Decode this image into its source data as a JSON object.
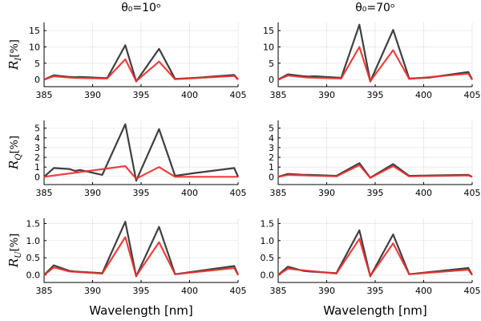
{
  "figure": {
    "column_titles": [
      "θ₀=10ᵒ",
      "θ₀=70ᵒ"
    ],
    "row_labels": [
      {
        "main": "R",
        "sub": "I",
        "unit": "[%]"
      },
      {
        "main": "R",
        "sub": "Q",
        "unit": "[%]"
      },
      {
        "main": "R",
        "sub": "U",
        "unit": "[%]"
      }
    ],
    "xlabel": "Wavelength [nm]",
    "series_colors": {
      "dark": "#3f3f3f",
      "red": "#e8302e"
    }
  },
  "chart_data": [
    {
      "type": "line",
      "panel": "RI-theta10",
      "xlim": [
        385,
        405
      ],
      "xticks": [
        385,
        390,
        395,
        400,
        405
      ],
      "ylim": [
        -2.2,
        17.5
      ],
      "yticks": [
        0,
        5,
        10,
        15
      ],
      "grid": true,
      "series": [
        {
          "color": "dark",
          "x": [
            385.0,
            386.0,
            387.6,
            388.2,
            388.7,
            391.5,
            393.37,
            394.5,
            396.85,
            398.5,
            400.6,
            404.6,
            405.0
          ],
          "y": [
            0.0,
            1.3,
            0.8,
            0.7,
            0.8,
            0.4,
            10.5,
            -0.6,
            9.4,
            0.2,
            0.5,
            1.4,
            0.0
          ]
        },
        {
          "color": "red",
          "x": [
            385.0,
            386.0,
            387.6,
            388.2,
            391.5,
            393.37,
            394.5,
            396.85,
            398.5,
            404.6,
            405.0
          ],
          "y": [
            0.0,
            1.0,
            0.6,
            0.5,
            0.3,
            6.2,
            -0.5,
            5.5,
            0.1,
            1.1,
            0.0
          ]
        }
      ]
    },
    {
      "type": "line",
      "panel": "RI-theta70",
      "xlim": [
        385,
        405
      ],
      "xticks": [
        385,
        390,
        395,
        400,
        405
      ],
      "ylim": [
        -2.2,
        17.5
      ],
      "yticks": [
        0,
        5,
        10,
        15
      ],
      "grid": true,
      "series": [
        {
          "color": "dark",
          "x": [
            385.0,
            386.0,
            387.6,
            388.2,
            388.7,
            391.5,
            393.37,
            394.5,
            396.85,
            398.5,
            400.6,
            404.6,
            405.0
          ],
          "y": [
            0.0,
            1.6,
            1.0,
            0.9,
            1.0,
            0.5,
            16.8,
            -0.6,
            15.2,
            0.3,
            0.6,
            2.3,
            0.0
          ]
        },
        {
          "color": "red",
          "x": [
            385.0,
            386.0,
            387.6,
            388.2,
            391.5,
            393.37,
            394.5,
            396.85,
            398.5,
            404.6,
            405.0
          ],
          "y": [
            0.0,
            1.2,
            0.7,
            0.6,
            0.3,
            10.0,
            -0.5,
            9.0,
            0.2,
            1.8,
            0.0
          ]
        }
      ]
    },
    {
      "type": "line",
      "panel": "RQ-theta10",
      "xlim": [
        385,
        405
      ],
      "xticks": [
        385,
        390,
        395,
        400,
        405
      ],
      "ylim": [
        -0.8,
        5.8
      ],
      "yticks": [
        0,
        1,
        2,
        3,
        4,
        5
      ],
      "grid": true,
      "series": [
        {
          "color": "dark",
          "x": [
            385.0,
            386.0,
            387.6,
            388.2,
            388.7,
            391.0,
            393.37,
            394.5,
            396.85,
            398.5,
            400.6,
            404.6,
            405.0
          ],
          "y": [
            0.0,
            0.9,
            0.8,
            0.6,
            0.7,
            0.2,
            5.4,
            -0.4,
            4.9,
            0.1,
            0.4,
            0.9,
            0.0
          ]
        },
        {
          "color": "red",
          "x": [
            385.0,
            393.37,
            394.5,
            396.85,
            398.5,
            405.0
          ],
          "y": [
            0.0,
            1.1,
            -0.2,
            1.0,
            0.0,
            0.0
          ]
        }
      ]
    },
    {
      "type": "line",
      "panel": "RQ-theta70",
      "xlim": [
        385,
        405
      ],
      "xticks": [
        385,
        390,
        395,
        400,
        405
      ],
      "ylim": [
        -0.8,
        5.8
      ],
      "yticks": [
        0,
        1,
        2,
        3,
        4,
        5
      ],
      "grid": true,
      "series": [
        {
          "color": "dark",
          "x": [
            385.0,
            386.0,
            387.6,
            388.2,
            391.0,
            393.37,
            394.5,
            396.85,
            398.5,
            404.6,
            405.0
          ],
          "y": [
            0.0,
            0.3,
            0.2,
            0.2,
            0.1,
            1.4,
            -0.1,
            1.3,
            0.1,
            0.2,
            0.0
          ]
        },
        {
          "color": "red",
          "x": [
            385.0,
            386.0,
            391.0,
            393.37,
            394.5,
            396.85,
            398.5,
            404.6,
            405.0
          ],
          "y": [
            0.0,
            0.2,
            0.05,
            1.2,
            -0.1,
            1.1,
            0.05,
            0.15,
            0.0
          ]
        }
      ]
    },
    {
      "type": "line",
      "panel": "RU-theta10",
      "xlim": [
        385,
        405
      ],
      "xticks": [
        385,
        390,
        395,
        400,
        405
      ],
      "ylim": [
        -0.22,
        1.65
      ],
      "yticks": [
        0.0,
        0.5,
        1.0,
        1.5
      ],
      "grid": true,
      "series": [
        {
          "color": "dark",
          "x": [
            385.0,
            386.0,
            387.6,
            388.2,
            391.0,
            393.37,
            394.5,
            396.85,
            398.5,
            404.6,
            405.0
          ],
          "y": [
            0.0,
            0.28,
            0.12,
            0.1,
            0.05,
            1.55,
            -0.04,
            1.4,
            0.02,
            0.26,
            0.0
          ]
        },
        {
          "color": "red",
          "x": [
            385.0,
            386.0,
            387.6,
            391.0,
            393.37,
            394.5,
            396.85,
            398.5,
            404.6,
            405.0
          ],
          "y": [
            0.0,
            0.22,
            0.1,
            0.04,
            1.1,
            -0.03,
            0.95,
            0.02,
            0.2,
            0.0
          ]
        }
      ]
    },
    {
      "type": "line",
      "panel": "RU-theta70",
      "xlim": [
        385,
        405
      ],
      "xticks": [
        385,
        390,
        395,
        400,
        405
      ],
      "ylim": [
        -0.22,
        1.65
      ],
      "yticks": [
        0.0,
        0.5,
        1.0,
        1.5
      ],
      "grid": true,
      "series": [
        {
          "color": "dark",
          "x": [
            385.0,
            386.0,
            387.6,
            388.2,
            391.0,
            393.37,
            394.5,
            396.85,
            398.5,
            404.6,
            405.0
          ],
          "y": [
            0.0,
            0.24,
            0.12,
            0.1,
            0.05,
            1.3,
            -0.04,
            1.18,
            0.02,
            0.2,
            0.0
          ]
        },
        {
          "color": "red",
          "x": [
            385.0,
            386.0,
            391.0,
            393.37,
            394.5,
            396.85,
            398.5,
            404.6,
            405.0
          ],
          "y": [
            0.0,
            0.18,
            0.04,
            1.05,
            -0.03,
            0.92,
            0.02,
            0.15,
            0.0
          ]
        }
      ]
    }
  ]
}
